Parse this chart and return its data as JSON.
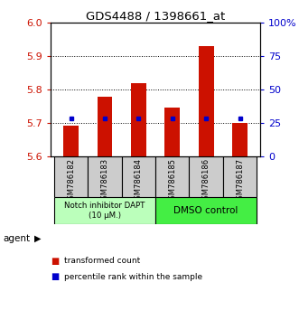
{
  "title": "GDS4488 / 1398661_at",
  "samples": [
    "GSM786182",
    "GSM786183",
    "GSM786184",
    "GSM786185",
    "GSM786186",
    "GSM786187"
  ],
  "red_values": [
    5.692,
    5.779,
    5.82,
    5.747,
    5.93,
    5.7
  ],
  "blue_values": [
    5.713,
    5.714,
    5.714,
    5.714,
    5.714,
    5.713
  ],
  "ylim_left": [
    5.6,
    6.0
  ],
  "yticks_left": [
    5.6,
    5.7,
    5.8,
    5.9,
    6.0
  ],
  "yticks_right": [
    0,
    25,
    50,
    75,
    100
  ],
  "ylim_right": [
    0,
    100
  ],
  "red_color": "#cc1100",
  "blue_color": "#0000cc",
  "group1_label": "Notch inhibitor DAPT\n(10 μM.)",
  "group2_label": "DMSO control",
  "group1_color": "#bbffbb",
  "group2_color": "#44ee44",
  "group1_samples": [
    0,
    1,
    2
  ],
  "group2_samples": [
    3,
    4,
    5
  ],
  "legend_red": "transformed count",
  "legend_blue": "percentile rank within the sample",
  "agent_label": "agent",
  "bar_bottom": 5.6,
  "bar_width": 0.45
}
